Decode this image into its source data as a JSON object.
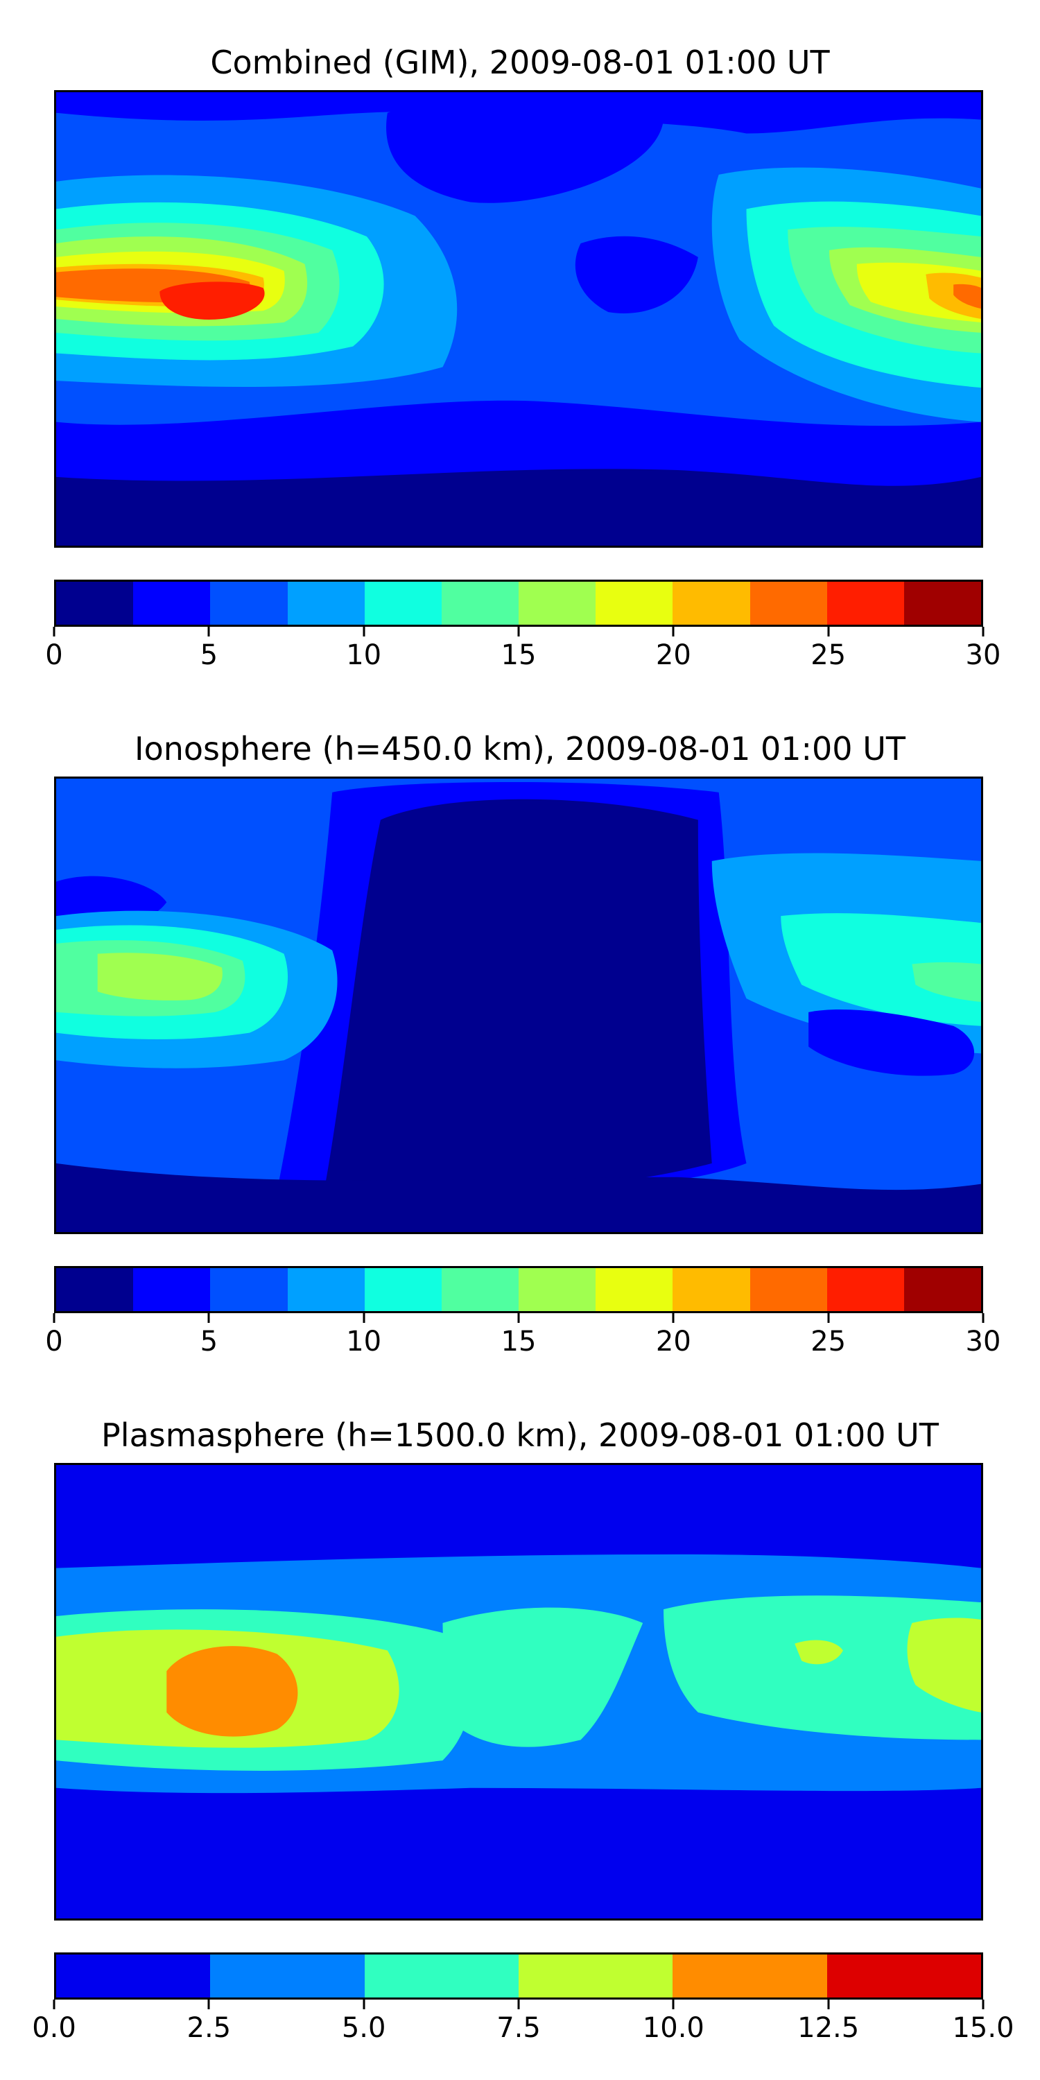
{
  "panels": [
    {
      "title": "Combined (GIM), 2009-08-01 01:00 UT",
      "colorbar": {
        "min": 0,
        "max": 30,
        "colors": [
          "#00008f",
          "#0000ff",
          "#0050ff",
          "#00a0ff",
          "#10ffe0",
          "#50ffa0",
          "#a0ff50",
          "#e8ff10",
          "#ffbb00",
          "#ff6a00",
          "#ff1e00",
          "#a00000"
        ],
        "tick_labels": [
          "0",
          "5",
          "10",
          "15",
          "20",
          "25",
          "30"
        ]
      }
    },
    {
      "title": "Ionosphere  (h=450.0 km), 2009-08-01 01:00 UT",
      "colorbar": {
        "min": 0,
        "max": 30,
        "colors": [
          "#00008f",
          "#0000ff",
          "#0050ff",
          "#00a0ff",
          "#10ffe0",
          "#50ffa0",
          "#a0ff50",
          "#e8ff10",
          "#ffbb00",
          "#ff6a00",
          "#ff1e00",
          "#a00000"
        ],
        "tick_labels": [
          "0",
          "5",
          "10",
          "15",
          "20",
          "25",
          "30"
        ]
      }
    },
    {
      "title": "Plasmasphere (h=1500.0 km), 2009-08-01 01:00 UT",
      "colorbar": {
        "min": 0,
        "max": 15,
        "colors": [
          "#0000ee",
          "#0080ff",
          "#30ffc0",
          "#c0ff30",
          "#ff8c00",
          "#dd0000"
        ],
        "tick_labels": [
          "0.0",
          "2.5",
          "5.0",
          "7.5",
          "10.0",
          "12.5",
          "15.0"
        ]
      }
    }
  ]
}
